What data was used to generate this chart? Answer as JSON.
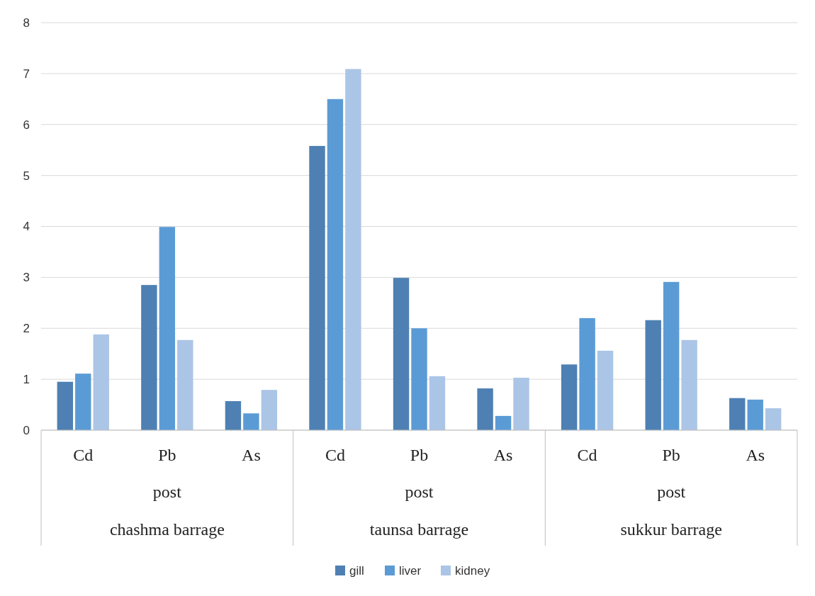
{
  "chart_data": {
    "type": "bar",
    "categories": [
      "Cd",
      "Pb",
      "As",
      "Cd",
      "Pb",
      "As",
      "Cd",
      "Pb",
      "As"
    ],
    "series": [
      {
        "name": "gill",
        "color": "#4e80b3",
        "values": [
          0.95,
          2.85,
          0.57,
          5.58,
          2.99,
          0.82,
          1.29,
          2.16,
          0.63
        ]
      },
      {
        "name": "liver",
        "color": "#5b9bd5",
        "values": [
          1.11,
          3.99,
          0.33,
          6.5,
          2.0,
          0.28,
          2.2,
          2.91,
          0.6
        ]
      },
      {
        "name": "kidney",
        "color": "#abc5e6",
        "values": [
          1.88,
          1.77,
          0.79,
          7.09,
          1.06,
          1.03,
          1.56,
          1.77,
          0.43
        ]
      }
    ],
    "ylim": [
      0,
      8
    ],
    "yticks": [
      0,
      1,
      2,
      3,
      4,
      5,
      6,
      7,
      8
    ],
    "grid": "y",
    "legend": "bottom",
    "annotations": [
      "post",
      "chashma barrage",
      "post",
      "taunsa barrage",
      "post",
      "sukkur barrage"
    ]
  }
}
